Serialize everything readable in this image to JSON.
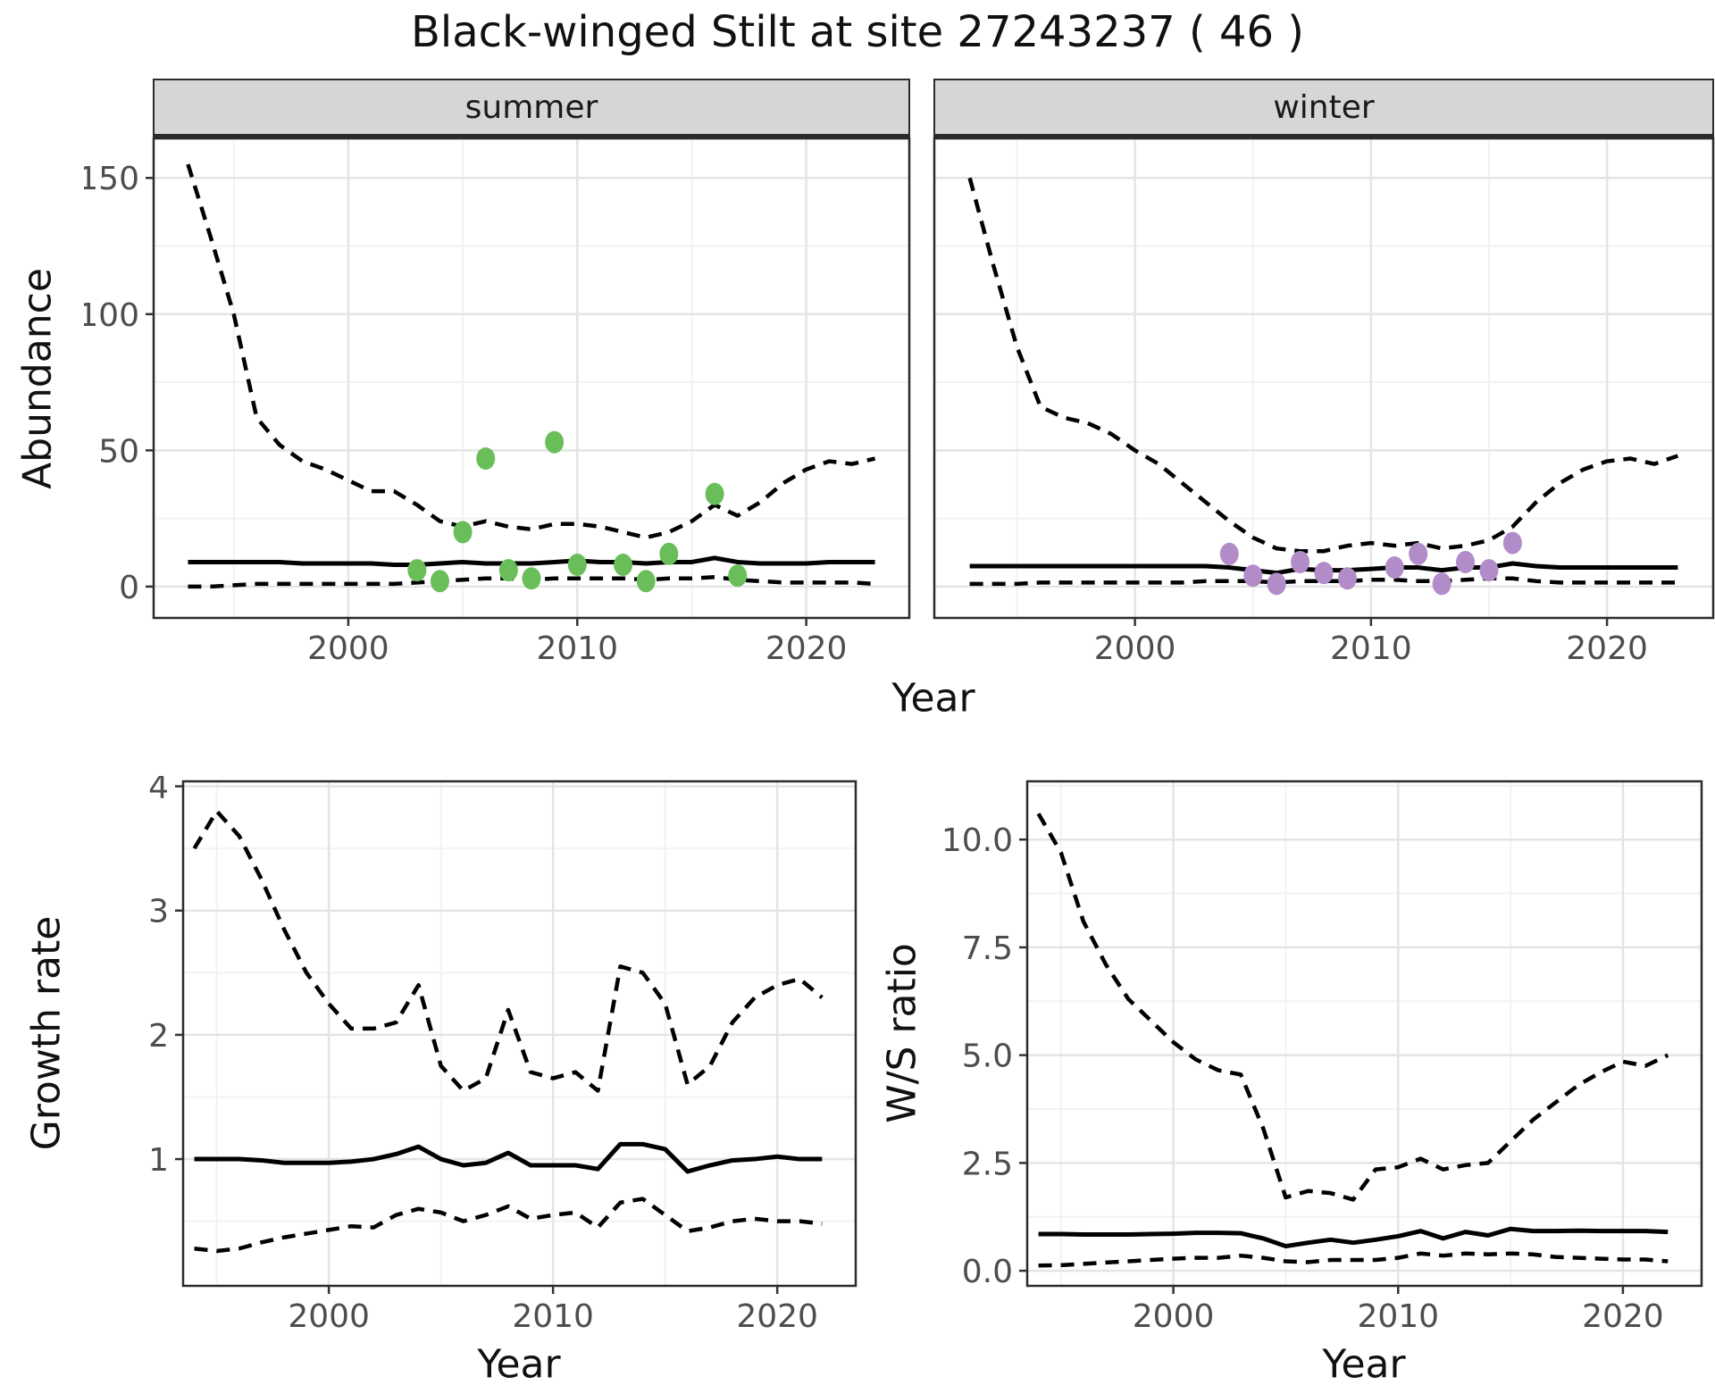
{
  "title": "Black-winged Stilt at site 27243237 ( 46 )",
  "facets": [
    "summer",
    "winter"
  ],
  "axes": {
    "x_label": "Year",
    "abundance_label": "Abundance",
    "growth_label": "Growth rate",
    "ws_label": "W/S ratio"
  },
  "colors": {
    "summer_points": "#6abe5a",
    "winter_points": "#b28cc8",
    "line": "#000000",
    "grid_major": "#e4e4e4",
    "grid_minor": "#f2f2f2",
    "panel_border": "#2b2b2b",
    "strip_bg": "#d6d6d6",
    "tick_text": "#4d4d4d",
    "tick_mark": "#333333"
  },
  "chart_data": [
    {
      "id": "abundance-summer",
      "type": "line",
      "facet": "summer",
      "xlabel": "Year",
      "ylabel": "Abundance",
      "xlim": [
        1991.5,
        2024.5
      ],
      "ylim": [
        -11.5,
        164.5
      ],
      "x_ticks": [
        2000,
        2010,
        2020
      ],
      "x_tick_labels": [
        "2000",
        "2010",
        "2020"
      ],
      "y_ticks": [
        0,
        50,
        100,
        150
      ],
      "y_tick_labels": [
        "0",
        "50",
        "100",
        "150"
      ],
      "x": [
        1993,
        1994,
        1995,
        1996,
        1997,
        1998,
        1999,
        2000,
        2001,
        2002,
        2003,
        2004,
        2005,
        2006,
        2007,
        2008,
        2009,
        2010,
        2011,
        2012,
        2013,
        2014,
        2015,
        2016,
        2017,
        2018,
        2019,
        2020,
        2021,
        2022,
        2023
      ],
      "series": [
        {
          "name": "upper_ci",
          "style": "dashed",
          "values": [
            155,
            128,
            100,
            62,
            52,
            46,
            43,
            39,
            35,
            35,
            30,
            24,
            22,
            24,
            22,
            21,
            23,
            23,
            22,
            20,
            18,
            20,
            24,
            30,
            26,
            31,
            38,
            43,
            46,
            45,
            47
          ]
        },
        {
          "name": "median",
          "style": "solid",
          "values": [
            9,
            9,
            9,
            9,
            9,
            8.5,
            8.5,
            8.5,
            8.5,
            8,
            8,
            8.5,
            9,
            8.5,
            8.5,
            8.5,
            9,
            9.5,
            9,
            9,
            8.5,
            9,
            9,
            10.5,
            9,
            8.5,
            8.5,
            8.5,
            9,
            9,
            9
          ]
        },
        {
          "name": "lower_ci",
          "style": "dashed",
          "values": [
            0,
            0,
            0.5,
            1,
            1,
            1,
            1,
            1,
            1,
            1,
            1.5,
            2,
            2.5,
            3,
            3,
            2.5,
            3,
            3,
            3,
            3,
            2.5,
            3,
            3,
            3.5,
            2.5,
            2,
            1.5,
            1.5,
            1.5,
            1.5,
            1
          ]
        }
      ],
      "observations": {
        "color_key": "summer_points",
        "points": [
          [
            2003,
            6
          ],
          [
            2004,
            2
          ],
          [
            2005,
            20
          ],
          [
            2006,
            47
          ],
          [
            2007,
            6
          ],
          [
            2008,
            3
          ],
          [
            2009,
            53
          ],
          [
            2010,
            8
          ],
          [
            2012,
            8
          ],
          [
            2013,
            2
          ],
          [
            2014,
            12
          ],
          [
            2016,
            34
          ],
          [
            2017,
            4
          ]
        ]
      }
    },
    {
      "id": "abundance-winter",
      "type": "line",
      "facet": "winter",
      "xlabel": "Year",
      "ylabel": "Abundance",
      "xlim": [
        1991.5,
        2024.5
      ],
      "ylim": [
        -11.5,
        164.5
      ],
      "x_ticks": [
        2000,
        2010,
        2020
      ],
      "x_tick_labels": [
        "2000",
        "2010",
        "2020"
      ],
      "y_ticks": [
        0,
        50,
        100,
        150
      ],
      "y_tick_labels": [
        "0",
        "50",
        "100",
        "150"
      ],
      "x": [
        1993,
        1994,
        1995,
        1996,
        1997,
        1998,
        1999,
        2000,
        2001,
        2002,
        2003,
        2004,
        2005,
        2006,
        2007,
        2008,
        2009,
        2010,
        2011,
        2012,
        2013,
        2014,
        2015,
        2016,
        2017,
        2018,
        2019,
        2020,
        2021,
        2022,
        2023
      ],
      "series": [
        {
          "name": "upper_ci",
          "style": "dashed",
          "values": [
            150,
            118,
            88,
            66,
            62,
            60,
            56,
            50,
            45,
            38,
            31,
            24,
            18,
            14,
            13,
            13,
            15,
            16,
            15,
            16,
            14,
            15,
            17,
            22,
            31,
            38,
            43,
            46,
            47,
            45,
            48
          ]
        },
        {
          "name": "median",
          "style": "solid",
          "values": [
            7.5,
            7.5,
            7.5,
            7.5,
            7.5,
            7.5,
            7.5,
            7.5,
            7.5,
            7.5,
            7.5,
            7,
            6,
            5,
            6.5,
            6,
            6,
            6.5,
            7,
            7,
            6,
            7,
            7,
            8.5,
            7.5,
            7,
            7,
            7,
            7,
            7,
            7
          ]
        },
        {
          "name": "lower_ci",
          "style": "dashed",
          "values": [
            1,
            1,
            1,
            1.5,
            1.5,
            1.5,
            1.5,
            1.5,
            1.5,
            1.5,
            2,
            2,
            2,
            1.5,
            2,
            2,
            2,
            2.5,
            2.5,
            2,
            2,
            2.5,
            3,
            3,
            2,
            1.5,
            1.5,
            1.5,
            1.5,
            1.5,
            1.5
          ]
        }
      ],
      "observations": {
        "color_key": "winter_points",
        "points": [
          [
            2004,
            12
          ],
          [
            2005,
            4
          ],
          [
            2006,
            1
          ],
          [
            2007,
            9
          ],
          [
            2008,
            5
          ],
          [
            2009,
            3
          ],
          [
            2011,
            7
          ],
          [
            2012,
            12
          ],
          [
            2013,
            1
          ],
          [
            2014,
            9
          ],
          [
            2015,
            6
          ],
          [
            2016,
            16
          ]
        ]
      }
    },
    {
      "id": "growth-rate",
      "type": "line",
      "facet": null,
      "xlabel": "Year",
      "ylabel": "Growth rate",
      "xlim": [
        1993.5,
        2023.5
      ],
      "ylim": [
        -0.02,
        4.04
      ],
      "x_ticks": [
        2000,
        2010,
        2020
      ],
      "x_tick_labels": [
        "2000",
        "2010",
        "2020"
      ],
      "y_ticks": [
        1,
        2,
        3,
        4
      ],
      "y_tick_labels": [
        "1",
        "2",
        "3",
        "4"
      ],
      "x": [
        1994,
        1995,
        1996,
        1997,
        1998,
        1999,
        2000,
        2001,
        2002,
        2003,
        2004,
        2005,
        2006,
        2007,
        2008,
        2009,
        2010,
        2011,
        2012,
        2013,
        2014,
        2015,
        2016,
        2017,
        2018,
        2019,
        2020,
        2021,
        2022
      ],
      "series": [
        {
          "name": "upper_ci",
          "style": "dashed",
          "values": [
            3.5,
            3.8,
            3.6,
            3.25,
            2.85,
            2.5,
            2.25,
            2.05,
            2.05,
            2.1,
            2.4,
            1.75,
            1.55,
            1.65,
            2.2,
            1.7,
            1.65,
            1.7,
            1.55,
            2.55,
            2.5,
            2.25,
            1.6,
            1.75,
            2.1,
            2.3,
            2.4,
            2.45,
            2.3
          ]
        },
        {
          "name": "median",
          "style": "solid",
          "values": [
            1,
            1,
            1,
            0.99,
            0.97,
            0.97,
            0.97,
            0.98,
            1,
            1.04,
            1.1,
            1,
            0.95,
            0.97,
            1.05,
            0.95,
            0.95,
            0.95,
            0.92,
            1.12,
            1.12,
            1.08,
            0.9,
            0.95,
            0.99,
            1,
            1.02,
            1,
            1
          ]
        },
        {
          "name": "lower_ci",
          "style": "dashed",
          "values": [
            0.28,
            0.26,
            0.28,
            0.33,
            0.37,
            0.4,
            0.43,
            0.46,
            0.45,
            0.55,
            0.6,
            0.57,
            0.5,
            0.55,
            0.62,
            0.52,
            0.55,
            0.57,
            0.45,
            0.65,
            0.68,
            0.55,
            0.42,
            0.45,
            0.5,
            0.52,
            0.5,
            0.5,
            0.48
          ]
        }
      ],
      "observations": {
        "color_key": null,
        "points": []
      }
    },
    {
      "id": "ws-ratio",
      "type": "line",
      "facet": null,
      "xlabel": "Year",
      "ylabel": "W/S ratio",
      "xlim": [
        1993.5,
        2023.5
      ],
      "ylim": [
        -0.35,
        11.35
      ],
      "x_ticks": [
        2000,
        2010,
        2020
      ],
      "x_tick_labels": [
        "2000",
        "2010",
        "2020"
      ],
      "y_ticks": [
        0,
        2.5,
        5,
        7.5,
        10
      ],
      "y_tick_labels": [
        "0.0",
        "2.5",
        "5.0",
        "7.5",
        "10.0"
      ],
      "x": [
        1994,
        1995,
        1996,
        1997,
        1998,
        1999,
        2000,
        2001,
        2002,
        2003,
        2004,
        2005,
        2006,
        2007,
        2008,
        2009,
        2010,
        2011,
        2012,
        2013,
        2014,
        2015,
        2016,
        2017,
        2018,
        2019,
        2020,
        2021,
        2022
      ],
      "series": [
        {
          "name": "upper_ci",
          "style": "dashed",
          "values": [
            10.6,
            9.7,
            8.1,
            7.1,
            6.3,
            5.8,
            5.3,
            4.9,
            4.65,
            4.55,
            3.3,
            1.7,
            1.85,
            1.8,
            1.65,
            2.35,
            2.4,
            2.6,
            2.35,
            2.45,
            2.5,
            3.0,
            3.5,
            3.9,
            4.3,
            4.6,
            4.85,
            4.75,
            5.0
          ]
        },
        {
          "name": "median",
          "style": "solid",
          "values": [
            0.85,
            0.85,
            0.84,
            0.84,
            0.84,
            0.85,
            0.86,
            0.88,
            0.88,
            0.87,
            0.75,
            0.57,
            0.65,
            0.72,
            0.65,
            0.72,
            0.8,
            0.92,
            0.75,
            0.9,
            0.82,
            0.97,
            0.92,
            0.92,
            0.93,
            0.92,
            0.92,
            0.92,
            0.9
          ]
        },
        {
          "name": "lower_ci",
          "style": "dashed",
          "values": [
            0.12,
            0.13,
            0.16,
            0.19,
            0.22,
            0.25,
            0.28,
            0.3,
            0.3,
            0.35,
            0.3,
            0.22,
            0.2,
            0.25,
            0.25,
            0.25,
            0.3,
            0.4,
            0.35,
            0.4,
            0.38,
            0.4,
            0.38,
            0.32,
            0.3,
            0.28,
            0.26,
            0.26,
            0.22
          ]
        }
      ],
      "observations": {
        "color_key": null,
        "points": []
      }
    }
  ]
}
